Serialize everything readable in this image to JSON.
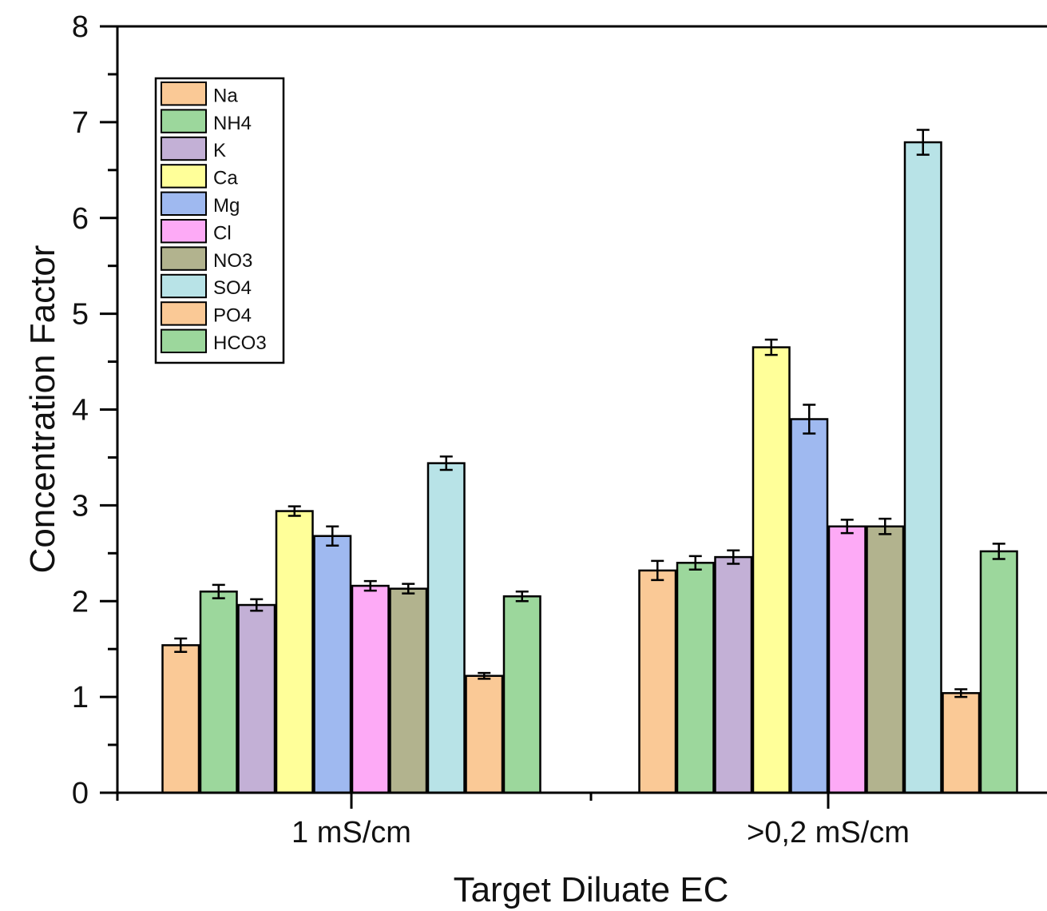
{
  "chart_data": {
    "type": "bar",
    "title": "",
    "xlabel": "Target Diluate EC",
    "ylabel": "Concentration Factor",
    "categories": [
      "1 mS/cm",
      ">0,2 mS/cm"
    ],
    "ylim": [
      0,
      8
    ],
    "yticks": [
      "0",
      "1",
      "2",
      "3",
      "4",
      "5",
      "6",
      "7",
      "8"
    ],
    "grid": false,
    "legend_position": "top-left",
    "series": [
      {
        "name": "Na",
        "color": "#fac996",
        "values": [
          1.54,
          2.32
        ],
        "errors": [
          0.07,
          0.1
        ]
      },
      {
        "name": "NH4",
        "color": "#9cd79c",
        "values": [
          2.1,
          2.4
        ],
        "errors": [
          0.07,
          0.07
        ]
      },
      {
        "name": "K",
        "color": "#c3b0d6",
        "values": [
          1.96,
          2.46
        ],
        "errors": [
          0.06,
          0.07
        ]
      },
      {
        "name": "Ca",
        "color": "#ffff99",
        "values": [
          2.94,
          4.65
        ],
        "errors": [
          0.05,
          0.08
        ]
      },
      {
        "name": "Mg",
        "color": "#9fb9f0",
        "values": [
          2.68,
          3.9
        ],
        "errors": [
          0.1,
          0.15
        ]
      },
      {
        "name": "Cl",
        "color": "#fdaaf6",
        "values": [
          2.16,
          2.78
        ],
        "errors": [
          0.05,
          0.07
        ]
      },
      {
        "name": "NO3",
        "color": "#b2b38e",
        "values": [
          2.13,
          2.78
        ],
        "errors": [
          0.05,
          0.08
        ]
      },
      {
        "name": "SO4",
        "color": "#b8e3e7",
        "values": [
          3.44,
          6.79
        ],
        "errors": [
          0.07,
          0.13
        ]
      },
      {
        "name": "PO4",
        "color": "#fac996",
        "values": [
          1.22,
          1.04
        ],
        "errors": [
          0.03,
          0.04
        ]
      },
      {
        "name": "HCO3",
        "color": "#9cd79c",
        "values": [
          2.05,
          2.52
        ],
        "errors": [
          0.05,
          0.08
        ]
      }
    ]
  }
}
